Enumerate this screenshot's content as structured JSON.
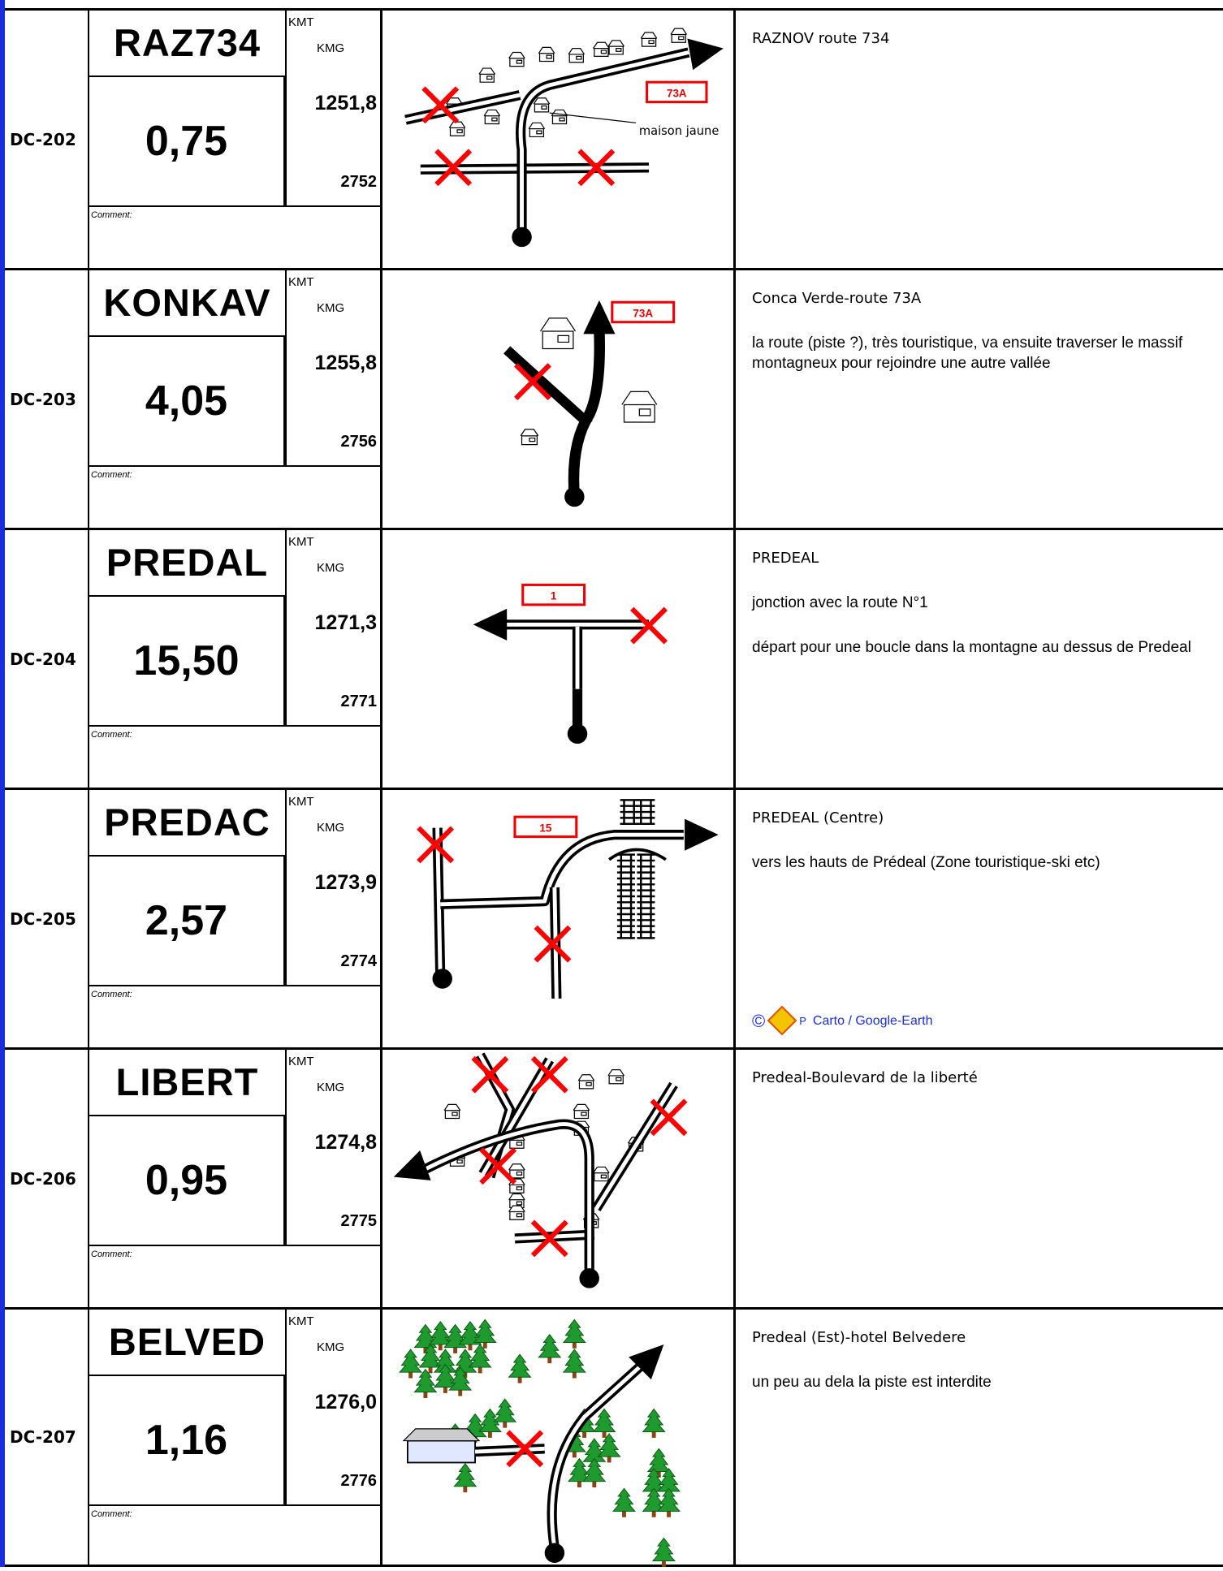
{
  "rows": [
    {
      "id": "DC-202",
      "code": "RAZ734",
      "distance": "0,75",
      "kmt_label": "KMT",
      "kmg_label": "KMG",
      "kmt": "1251,8",
      "kmg": "2752",
      "comment": "Comment:",
      "map_labels": [
        "73A",
        "maison jaune"
      ],
      "description": [
        "RAZNOV route 734"
      ]
    },
    {
      "id": "DC-203",
      "code": "KONKAV",
      "distance": "4,05",
      "kmt_label": "KMT",
      "kmg_label": "KMG",
      "kmt": "1255,8",
      "kmg": "2756",
      "comment": "Comment:",
      "map_labels": [
        "73A"
      ],
      "description": [
        "Conca Verde-route 73A",
        "la route (piste ?), très touristique, va ensuite traverser le massif montagneux pour rejoindre une autre vallée"
      ]
    },
    {
      "id": "DC-204",
      "code": "PREDAL",
      "distance": "15,50",
      "kmt_label": "KMT",
      "kmg_label": "KMG",
      "kmt": "1271,3",
      "kmg": "2771",
      "comment": "Comment:",
      "map_labels": [
        "1"
      ],
      "description": [
        "PREDEAL",
        "jonction avec la route N°1",
        "départ pour une boucle dans la montagne au dessus de Predeal"
      ]
    },
    {
      "id": "DC-205",
      "code": "PREDAC",
      "distance": "2,57",
      "kmt_label": "KMT",
      "kmg_label": "KMG",
      "kmt": "1273,9",
      "kmg": "2774",
      "comment": "Comment:",
      "map_labels": [
        "15"
      ],
      "description": [
        "PREDEAL (Centre)",
        "vers les hauts de Prédeal (Zone touristique-ski etc)"
      ]
    },
    {
      "id": "DC-206",
      "code": "LIBERT",
      "distance": "0,95",
      "kmt_label": "KMT",
      "kmg_label": "KMG",
      "kmt": "1274,8",
      "kmg": "2775",
      "comment": "Comment:",
      "map_labels": [],
      "description": [
        "Predeal-Boulevard de la liberté"
      ]
    },
    {
      "id": "DC-207",
      "code": "BELVED",
      "distance": "1,16",
      "kmt_label": "KMT",
      "kmg_label": "KMG",
      "kmt": "1276,0",
      "kmg": "2776",
      "comment": "Comment:",
      "map_labels": [],
      "description": [
        "Predeal (Est)-hotel Belvedere",
        "un peu au dela la piste est interdite"
      ]
    }
  ],
  "credit": {
    "symbol": "©",
    "mark": "P",
    "text": "Carto / Google-Earth"
  }
}
